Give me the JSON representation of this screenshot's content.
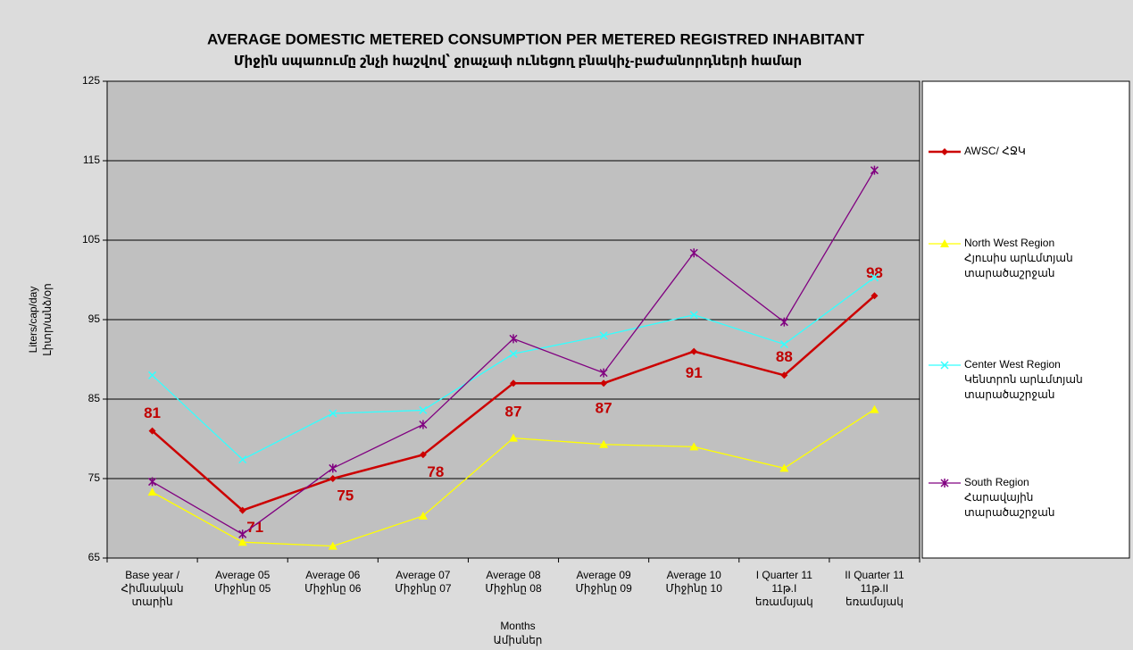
{
  "chart_data": {
    "type": "line",
    "title": "AVERAGE DOMESTIC METERED CONSUMPTION  PER METERED  REGISTRED INHABITANT",
    "subtitle": "Միջին սպառումը շնչի հաշվով՝ ջրաչափ ունեցող բնակիչ-բաժանորդների համար",
    "y_label": [
      "Liters/cap/day",
      "Լիտր/անձ/օր"
    ],
    "x_label": [
      "Months",
      "Ամիսներ"
    ],
    "categories": [
      [
        "Base year /",
        "Հիմնական",
        "տարին"
      ],
      [
        "Average 05",
        "Միջինը 05"
      ],
      [
        "Average 06",
        "Միջինը 06"
      ],
      [
        "Average 07",
        "Միջինը 07"
      ],
      [
        "Average 08",
        "Միջինը 08"
      ],
      [
        "Average 09",
        "Միջինը 09"
      ],
      [
        "Average 10",
        "Միջինը 10"
      ],
      [
        "I Quarter 11",
        "11թ.I",
        "եռամսյակ"
      ],
      [
        "II Quarter 11",
        "11թ.II",
        "եռամսյակ"
      ]
    ],
    "series": [
      {
        "name": [
          "AWSC/ ՀՋԿ"
        ],
        "color": "#cc0000",
        "marker": "diamond",
        "data_labels": true,
        "values": [
          81,
          71,
          75,
          78,
          87,
          87,
          91,
          88,
          98
        ]
      },
      {
        "name": [
          "North West Region",
          "Հյուսիս արևմտյան",
          "տարածաշրջան"
        ],
        "color": "#ffff00",
        "marker": "triangle",
        "values": [
          73.3,
          67.0,
          66.5,
          70.3,
          80.1,
          79.3,
          79.0,
          76.3,
          83.7
        ]
      },
      {
        "name": [
          "Center West Region",
          "Կենտրոն արևմտյան",
          "տարածաշրջան"
        ],
        "color": "#33ffff",
        "marker": "x",
        "values": [
          88.0,
          77.4,
          83.2,
          83.6,
          90.7,
          93.0,
          95.6,
          91.9,
          100.3
        ]
      },
      {
        "name": [
          "South Region",
          "Հարավային",
          "տարածաշրջան"
        ],
        "color": "#800080",
        "marker": "star",
        "values": [
          74.6,
          68.0,
          76.3,
          81.8,
          92.6,
          88.3,
          103.4,
          94.7,
          113.8
        ]
      }
    ],
    "ylim": [
      65,
      125
    ],
    "yticks": [
      65,
      75,
      85,
      95,
      105,
      115,
      125
    ],
    "grid": true
  }
}
